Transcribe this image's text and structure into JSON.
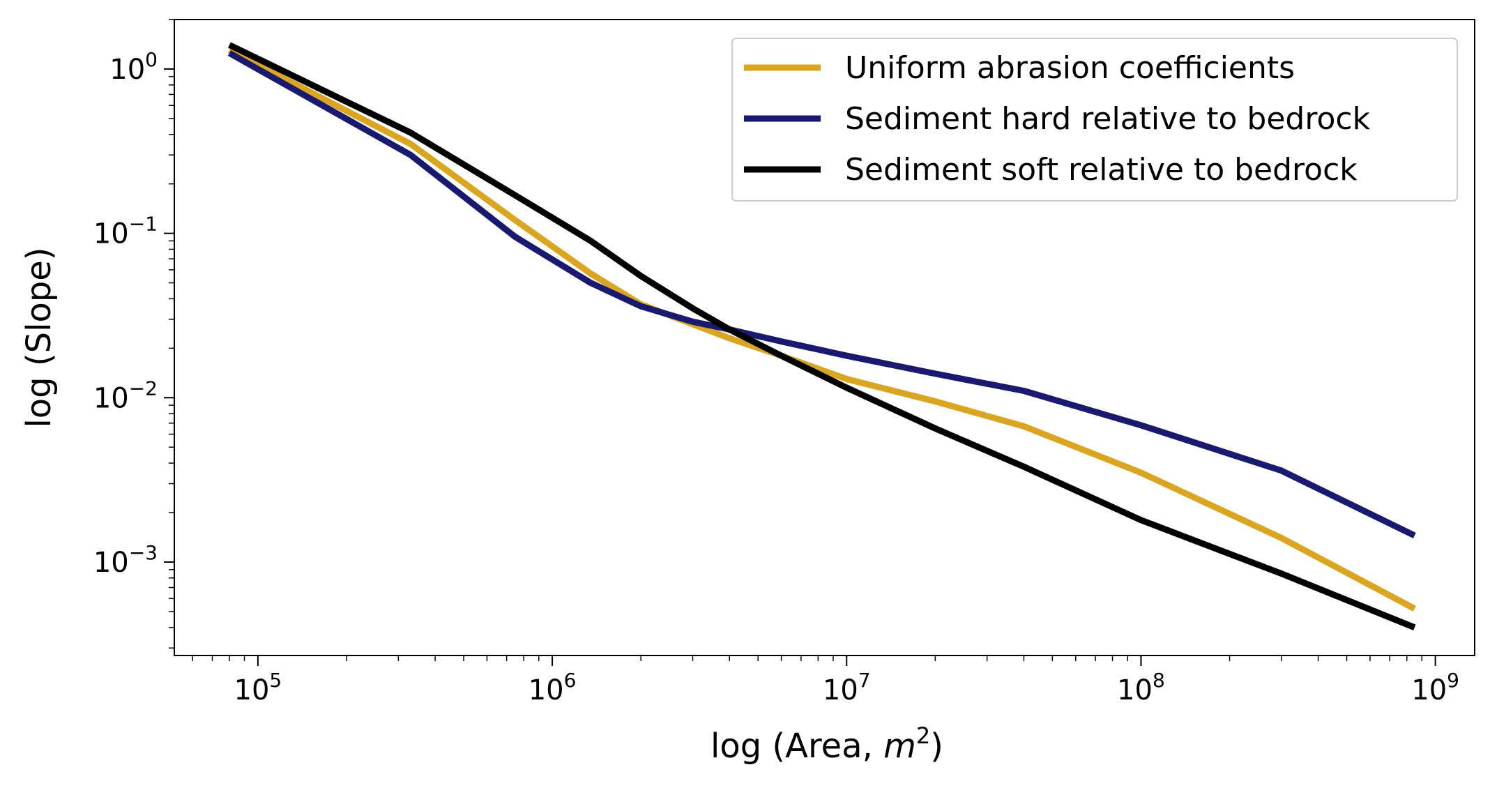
{
  "chart_data": {
    "type": "line",
    "xscale": "log",
    "yscale": "log",
    "xlim": [
      52000,
      1360000000
    ],
    "ylim": [
      0.00027,
      2.0
    ],
    "xlabel": {
      "text": "log (Area, ",
      "math": "m",
      "sup": "2",
      "close": ")"
    },
    "ylabel": "log (Slope)",
    "grid": false,
    "legend_position": "top-right",
    "x_ticks": [
      {
        "value": 100000,
        "base": "10",
        "exp": "5"
      },
      {
        "value": 1000000,
        "base": "10",
        "exp": "6"
      },
      {
        "value": 10000000,
        "base": "10",
        "exp": "7"
      },
      {
        "value": 100000000,
        "base": "10",
        "exp": "8"
      },
      {
        "value": 1000000000,
        "base": "10",
        "exp": "9"
      }
    ],
    "y_ticks": [
      {
        "value": 1,
        "base": "10",
        "exp": "0"
      },
      {
        "value": 0.1,
        "base": "10",
        "exp": "−1"
      },
      {
        "value": 0.01,
        "base": "10",
        "exp": "−2"
      },
      {
        "value": 0.001,
        "base": "10",
        "exp": "−3"
      }
    ],
    "series": [
      {
        "name": "Uniform abrasion coefficients",
        "color": "#DAA520",
        "x": [
          80000,
          330000,
          750000,
          1350000,
          2000000,
          3000000,
          4000000,
          6000000,
          10000000,
          20000000,
          40000000,
          100000000,
          300000000,
          850000000
        ],
        "y": [
          1.3,
          0.35,
          0.12,
          0.057,
          0.037,
          0.028,
          0.023,
          0.018,
          0.013,
          0.0095,
          0.0067,
          0.0035,
          0.0014,
          0.00052
        ]
      },
      {
        "name": "Sediment hard relative to bedrock",
        "color": "#191970",
        "x": [
          80000,
          330000,
          750000,
          1350000,
          2000000,
          3000000,
          4000000,
          6000000,
          10000000,
          20000000,
          40000000,
          100000000,
          300000000,
          850000000
        ],
        "y": [
          1.25,
          0.3,
          0.095,
          0.05,
          0.036,
          0.029,
          0.026,
          0.022,
          0.018,
          0.014,
          0.011,
          0.0068,
          0.0036,
          0.00145
        ]
      },
      {
        "name": "Sediment soft relative to bedrock",
        "color": "#000000",
        "x": [
          80000,
          330000,
          750000,
          1350000,
          2000000,
          3000000,
          4000000,
          6000000,
          10000000,
          20000000,
          40000000,
          100000000,
          300000000,
          850000000
        ],
        "y": [
          1.4,
          0.41,
          0.17,
          0.09,
          0.055,
          0.035,
          0.026,
          0.018,
          0.0115,
          0.0065,
          0.0038,
          0.0018,
          0.00085,
          0.0004
        ]
      }
    ]
  }
}
